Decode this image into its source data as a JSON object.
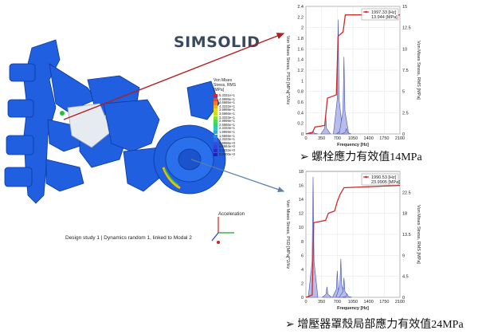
{
  "logo": {
    "text": "SIMSOLID"
  },
  "model_footer": "Design study 1 | Dynamics random 1, linked to Modal 2",
  "triad_label": "Acceleration",
  "legend_title": "Von Mises Stress, RMS [MPa]",
  "legend_values": [
    "5.3331e+1",
    "4.9998e+1",
    "4.6665e+1",
    "4.3332e+1",
    "3.9999e+1",
    "3.6666e+1",
    "3.3333e+1",
    "2.9999e+1",
    "2.6666e+1",
    "2.3333e+1",
    "1.9999e+1",
    "1.6666e+1",
    "1.3333e+1",
    "9.9996e+0",
    "6.6664e+0",
    "3.3332e+0",
    "0.0000e+0"
  ],
  "colors": {
    "arrow": "#b02020",
    "arrow_blue": "#5a7fa8",
    "model": "#1f5fe0",
    "psd": "#4450b8",
    "rms": "#cc2a2a"
  },
  "captions": {
    "top": "螺栓應力有效值14MPa",
    "bottom": "增壓器罩殼局部應力有效值24MPa",
    "bullet": "➢"
  },
  "chart_data": [
    {
      "type": "line",
      "xlabel": "Frequency [Hz]",
      "ylabel_left": "Von Mises Stress, PSD [MPa]^2/Hz",
      "ylabel_right": "Von Mises Stress, RMS [MPa]",
      "xticks": [
        0,
        350,
        700,
        1050,
        1400,
        1750,
        2100
      ],
      "yticks_left": [
        "0",
        "0.2",
        "0.4",
        "0.6",
        "0.8",
        "1",
        "1.2",
        "1.4",
        "1.6",
        "1.8",
        "2",
        "2.2",
        "2.4"
      ],
      "yticks_right": [
        "0",
        "2.5",
        "5",
        "7.5",
        "10",
        "12.5",
        "15"
      ],
      "ylim_left": [
        0,
        2.4
      ],
      "ylim_right": [
        0,
        15
      ],
      "xlim": [
        0,
        2100
      ],
      "tooltip": {
        "line1": "1997.33 [Hz]",
        "line2": "13.944 [MPa]"
      },
      "psd_peaks": [
        {
          "x": 165,
          "y": 0.05
        },
        {
          "x": 440,
          "y": 0.35
        },
        {
          "x": 720,
          "y": 2.15
        },
        {
          "x": 790,
          "y": 0.18
        },
        {
          "x": 850,
          "y": 1.45
        },
        {
          "x": 900,
          "y": 0.1
        }
      ],
      "rms_curve": [
        [
          0,
          0
        ],
        [
          150,
          0.2
        ],
        [
          200,
          0.8
        ],
        [
          420,
          1.0
        ],
        [
          480,
          4.2
        ],
        [
          680,
          4.6
        ],
        [
          720,
          11.5
        ],
        [
          830,
          12.0
        ],
        [
          880,
          14.0
        ],
        [
          2100,
          14.0
        ]
      ]
    },
    {
      "type": "line",
      "xlabel": "Frequency [Hz]",
      "ylabel_left": "Von Mises Stress, PSD [MPa]^2/Hz",
      "ylabel_right": "Von Mises Stress, RMS [MPa]",
      "xticks": [
        0,
        350,
        700,
        1050,
        1400,
        1750,
        2100
      ],
      "yticks_left": [
        "0",
        "2",
        "4",
        "6",
        "8",
        "10",
        "12",
        "14",
        "16",
        "18"
      ],
      "yticks_right": [
        "0",
        "4.5",
        "9",
        "13.5",
        "18",
        "22.5"
      ],
      "ylim_left": [
        0,
        18
      ],
      "ylim_right": [
        0,
        27
      ],
      "xlim": [
        0,
        2100
      ],
      "tooltip": {
        "line1": "1990.53 [Hz]",
        "line2": "23.9905 [MPa]"
      },
      "psd_peaks": [
        {
          "x": 160,
          "y": 17.2
        },
        {
          "x": 470,
          "y": 1.5
        },
        {
          "x": 700,
          "y": 3.8
        },
        {
          "x": 780,
          "y": 5.5
        },
        {
          "x": 850,
          "y": 2.8
        },
        {
          "x": 920,
          "y": 0.5
        }
      ],
      "rms_curve": [
        [
          0,
          0
        ],
        [
          140,
          0.5
        ],
        [
          175,
          16.0
        ],
        [
          440,
          16.5
        ],
        [
          500,
          18.0
        ],
        [
          640,
          18.5
        ],
        [
          700,
          20.5
        ],
        [
          760,
          22.0
        ],
        [
          850,
          23.5
        ],
        [
          2100,
          24.0
        ]
      ]
    }
  ]
}
